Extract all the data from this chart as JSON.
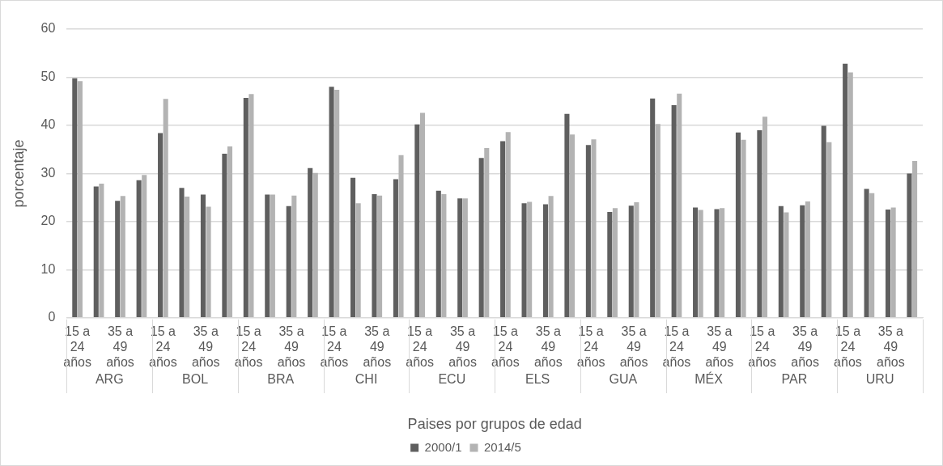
{
  "chart_data": {
    "type": "bar",
    "xlabel": "Paises por grupos de edad",
    "ylabel": "porcentaje",
    "categories": [
      "15 a 24 años",
      null,
      "35 a 49 años",
      null,
      "15 a 24 años",
      null,
      "35 a 49 años",
      null,
      "15 a 24 años",
      null,
      "35 a 49 años",
      null,
      "15 a 24 años",
      null,
      "35 a 49 años",
      null,
      "15 a 24 años",
      null,
      "35 a 49 años",
      null,
      "15 a 24 años",
      null,
      "35 a 49 años",
      null,
      "15 a 24 años",
      null,
      "35 a 49 años",
      null,
      "15 a 24 años",
      null,
      "35 a 49 años",
      null,
      "15 a 24 años",
      null,
      "35 a 49 años",
      null,
      "15 a 24 años",
      null,
      "35 a 49 años",
      null
    ],
    "annotations": [
      "ARG",
      "BOL",
      "BRA",
      "CHI",
      "ECU",
      "ELS",
      "GUA",
      "MÉX",
      "PAR",
      "URU"
    ],
    "series": [
      {
        "name": "2000/1",
        "color": "#5f5f5f",
        "values": [
          49.8,
          27.3,
          24.3,
          28.6,
          38.4,
          27.0,
          25.6,
          34.1,
          45.7,
          25.6,
          23.2,
          31.1,
          48.0,
          29.1,
          25.7,
          28.8,
          40.2,
          26.4,
          24.8,
          33.2,
          36.7,
          23.8,
          23.6,
          42.4,
          35.9,
          22.0,
          23.3,
          45.6,
          44.2,
          22.9,
          22.6,
          38.5,
          39.0,
          23.2,
          23.4,
          39.9,
          52.8,
          26.8,
          22.5,
          30.0
        ]
      },
      {
        "name": "2014/5",
        "color": "#b3b3b3",
        "values": [
          49.2,
          27.9,
          25.3,
          29.7,
          45.5,
          25.2,
          23.1,
          35.6,
          46.5,
          25.6,
          25.4,
          30.1,
          47.4,
          23.8,
          25.4,
          33.8,
          42.6,
          25.7,
          24.8,
          35.3,
          38.6,
          24.1,
          25.3,
          38.1,
          37.1,
          22.8,
          24.0,
          40.3,
          46.6,
          22.4,
          22.8,
          37.0,
          41.8,
          21.9,
          24.2,
          36.5,
          51.0,
          25.9,
          22.9,
          32.6
        ]
      }
    ],
    "ylim": [
      0,
      60
    ],
    "yticks": [
      0,
      10,
      20,
      30,
      40,
      50,
      60
    ],
    "grid": "y",
    "legend": "bottom"
  }
}
